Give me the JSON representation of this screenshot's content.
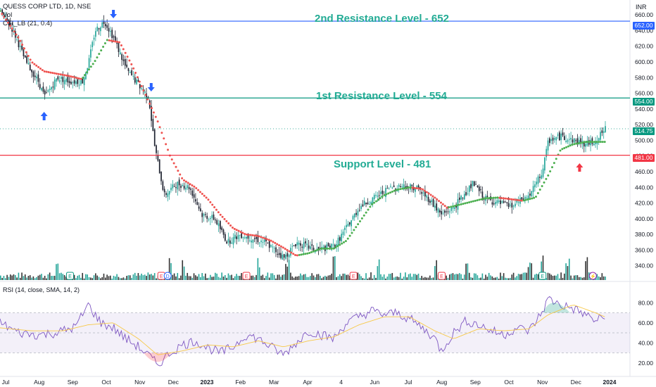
{
  "header": {
    "symbol": "QUESS CORP LTD, 1D, NSE",
    "vol_label": "Vol",
    "indicator_label": "CTI_LB (21, 0.4)",
    "currency": "INR"
  },
  "rsi": {
    "title": "RSI (14, close, SMA, 14, 2)",
    "ticks": [
      "80.00",
      "60.00",
      "40.00",
      "20.00"
    ],
    "upper_band": 70,
    "lower_band": 30
  },
  "annotations": {
    "resistance2": "2nd Resistance Level - 652",
    "resistance1": "1st Resistance Level - 554",
    "support": "Support Level - 481"
  },
  "price_tags": {
    "r2": "652.00",
    "r1": "554.00",
    "last": "514.75",
    "support": "481.00"
  },
  "colors": {
    "up": "#26a69a",
    "down": "#ef5350",
    "resistance2_line": "#2962ff",
    "resistance1_line": "#089981",
    "support_line": "#f23645",
    "annotation_text": "#22ab94",
    "rsi_line": "#7e57c2",
    "rsi_ma": "#f7c948",
    "arrow_blue": "#2962ff",
    "arrow_red": "#f23645"
  },
  "chart_data": {
    "type": "candlestick",
    "title": "QUESS CORP LTD, 1D, NSE",
    "price_ylim": [
      320,
      670
    ],
    "y_ticks": [
      340,
      360,
      380,
      400,
      420,
      440,
      460,
      480,
      500,
      520,
      540,
      560,
      580,
      600,
      620,
      640,
      660
    ],
    "x_ticks": [
      "Jul",
      "Aug",
      "Sep",
      "Oct",
      "Nov",
      "Dec",
      "2023",
      "Feb",
      "Mar",
      "Apr",
      "4",
      "Jun",
      "Jul",
      "Aug",
      "Sep",
      "Oct",
      "Nov",
      "Dec",
      "2024"
    ],
    "levels": [
      {
        "name": "2nd Resistance Level",
        "value": 652
      },
      {
        "name": "1st Resistance Level",
        "value": 554
      },
      {
        "name": "Support Level",
        "value": 481
      }
    ],
    "last_price": 514.75,
    "price_path": [
      [
        0,
        665
      ],
      [
        0.02,
        640
      ],
      [
        0.04,
        600
      ],
      [
        0.06,
        575
      ],
      [
        0.07,
        555
      ],
      [
        0.09,
        580
      ],
      [
        0.11,
        575
      ],
      [
        0.13,
        575
      ],
      [
        0.14,
        600
      ],
      [
        0.15,
        640
      ],
      [
        0.165,
        652
      ],
      [
        0.18,
        630
      ],
      [
        0.2,
        590
      ],
      [
        0.22,
        570
      ],
      [
        0.235,
        555
      ],
      [
        0.245,
        490
      ],
      [
        0.26,
        430
      ],
      [
        0.28,
        445
      ],
      [
        0.3,
        440
      ],
      [
        0.32,
        405
      ],
      [
        0.34,
        400
      ],
      [
        0.36,
        370
      ],
      [
        0.38,
        380
      ],
      [
        0.4,
        375
      ],
      [
        0.42,
        370
      ],
      [
        0.45,
        350
      ],
      [
        0.47,
        370
      ],
      [
        0.5,
        360
      ],
      [
        0.53,
        365
      ],
      [
        0.55,
        390
      ],
      [
        0.57,
        415
      ],
      [
        0.6,
        430
      ],
      [
        0.62,
        440
      ],
      [
        0.64,
        442
      ],
      [
        0.66,
        440
      ],
      [
        0.68,
        425
      ],
      [
        0.7,
        405
      ],
      [
        0.72,
        415
      ],
      [
        0.74,
        435
      ],
      [
        0.75,
        445
      ],
      [
        0.77,
        425
      ],
      [
        0.79,
        420
      ],
      [
        0.81,
        415
      ],
      [
        0.83,
        425
      ],
      [
        0.84,
        430
      ],
      [
        0.86,
        460
      ],
      [
        0.87,
        500
      ],
      [
        0.89,
        505
      ],
      [
        0.91,
        500
      ],
      [
        0.93,
        495
      ],
      [
        0.945,
        500
      ],
      [
        0.96,
        514.75
      ]
    ],
    "trend_path": [
      [
        0,
        665
      ],
      [
        0.03,
        630
      ],
      [
        0.05,
        600
      ],
      [
        0.07,
        588
      ],
      [
        0.09,
        585
      ],
      [
        0.11,
        582
      ],
      [
        0.13,
        578
      ],
      [
        0.15,
        600
      ],
      [
        0.17,
        628
      ],
      [
        0.19,
        625
      ],
      [
        0.21,
        595
      ],
      [
        0.23,
        560
      ],
      [
        0.25,
        525
      ],
      [
        0.27,
        480
      ],
      [
        0.29,
        450
      ],
      [
        0.31,
        440
      ],
      [
        0.33,
        425
      ],
      [
        0.35,
        405
      ],
      [
        0.37,
        388
      ],
      [
        0.39,
        380
      ],
      [
        0.41,
        378
      ],
      [
        0.43,
        372
      ],
      [
        0.45,
        363
      ],
      [
        0.47,
        353
      ],
      [
        0.49,
        356
      ],
      [
        0.51,
        362
      ],
      [
        0.53,
        362
      ],
      [
        0.55,
        372
      ],
      [
        0.57,
        395
      ],
      [
        0.59,
        418
      ],
      [
        0.61,
        430
      ],
      [
        0.63,
        437
      ],
      [
        0.65,
        440
      ],
      [
        0.67,
        438
      ],
      [
        0.69,
        427
      ],
      [
        0.71,
        414
      ],
      [
        0.73,
        418
      ],
      [
        0.75,
        422
      ],
      [
        0.77,
        426
      ],
      [
        0.79,
        427
      ],
      [
        0.81,
        425
      ],
      [
        0.83,
        423
      ],
      [
        0.85,
        427
      ],
      [
        0.87,
        455
      ],
      [
        0.89,
        488
      ],
      [
        0.91,
        495
      ],
      [
        0.93,
        498
      ],
      [
        0.96,
        498
      ]
    ],
    "rsi_path": [
      [
        0,
        60
      ],
      [
        0.03,
        50
      ],
      [
        0.06,
        48
      ],
      [
        0.09,
        50
      ],
      [
        0.12,
        56
      ],
      [
        0.14,
        78
      ],
      [
        0.16,
        60
      ],
      [
        0.18,
        55
      ],
      [
        0.2,
        44
      ],
      [
        0.22,
        36
      ],
      [
        0.24,
        25
      ],
      [
        0.25,
        18
      ],
      [
        0.27,
        30
      ],
      [
        0.29,
        38
      ],
      [
        0.31,
        42
      ],
      [
        0.33,
        35
      ],
      [
        0.35,
        30
      ],
      [
        0.37,
        36
      ],
      [
        0.39,
        48
      ],
      [
        0.41,
        44
      ],
      [
        0.43,
        36
      ],
      [
        0.45,
        28
      ],
      [
        0.47,
        40
      ],
      [
        0.49,
        52
      ],
      [
        0.51,
        48
      ],
      [
        0.53,
        44
      ],
      [
        0.55,
        60
      ],
      [
        0.57,
        66
      ],
      [
        0.59,
        72
      ],
      [
        0.61,
        68
      ],
      [
        0.63,
        70
      ],
      [
        0.65,
        64
      ],
      [
        0.67,
        55
      ],
      [
        0.69,
        45
      ],
      [
        0.7,
        32
      ],
      [
        0.72,
        50
      ],
      [
        0.74,
        62
      ],
      [
        0.76,
        58
      ],
      [
        0.78,
        52
      ],
      [
        0.8,
        48
      ],
      [
        0.82,
        55
      ],
      [
        0.84,
        52
      ],
      [
        0.86,
        70
      ],
      [
        0.87,
        84
      ],
      [
        0.89,
        78
      ],
      [
        0.91,
        74
      ],
      [
        0.93,
        68
      ],
      [
        0.945,
        62
      ],
      [
        0.96,
        66
      ]
    ],
    "rsi_ma_path": [
      [
        0,
        55
      ],
      [
        0.05,
        52
      ],
      [
        0.1,
        52
      ],
      [
        0.14,
        58
      ],
      [
        0.18,
        60
      ],
      [
        0.22,
        44
      ],
      [
        0.25,
        28
      ],
      [
        0.29,
        32
      ],
      [
        0.33,
        38
      ],
      [
        0.37,
        36
      ],
      [
        0.41,
        42
      ],
      [
        0.45,
        36
      ],
      [
        0.49,
        42
      ],
      [
        0.53,
        46
      ],
      [
        0.57,
        58
      ],
      [
        0.61,
        66
      ],
      [
        0.65,
        66
      ],
      [
        0.69,
        52
      ],
      [
        0.72,
        44
      ],
      [
        0.76,
        54
      ],
      [
        0.8,
        52
      ],
      [
        0.84,
        54
      ],
      [
        0.87,
        68
      ],
      [
        0.91,
        78
      ],
      [
        0.945,
        70
      ],
      [
        0.96,
        66
      ]
    ],
    "volume_spikes": [
      0.09,
      0.27,
      0.29,
      0.41,
      0.455,
      0.53,
      0.6,
      0.69,
      0.74,
      0.84,
      0.86,
      0.9,
      0.93
    ],
    "earnings_markers": [
      {
        "x": 0.11,
        "label": "E"
      },
      {
        "x": 0.255,
        "label": "E"
      },
      {
        "x": 0.265,
        "label": "D"
      },
      {
        "x": 0.39,
        "label": "E"
      },
      {
        "x": 0.56,
        "label": "E"
      },
      {
        "x": 0.7,
        "label": "E"
      },
      {
        "x": 0.86,
        "label": "E"
      },
      {
        "x": 0.94,
        "label": "⚡"
      }
    ],
    "arrows": [
      {
        "x": 0.07,
        "dir": "up",
        "color": "blue"
      },
      {
        "x": 0.18,
        "dir": "down",
        "color": "blue"
      },
      {
        "x": 0.24,
        "dir": "down",
        "color": "blue"
      },
      {
        "x": 0.92,
        "dir": "up",
        "color": "red"
      }
    ]
  }
}
